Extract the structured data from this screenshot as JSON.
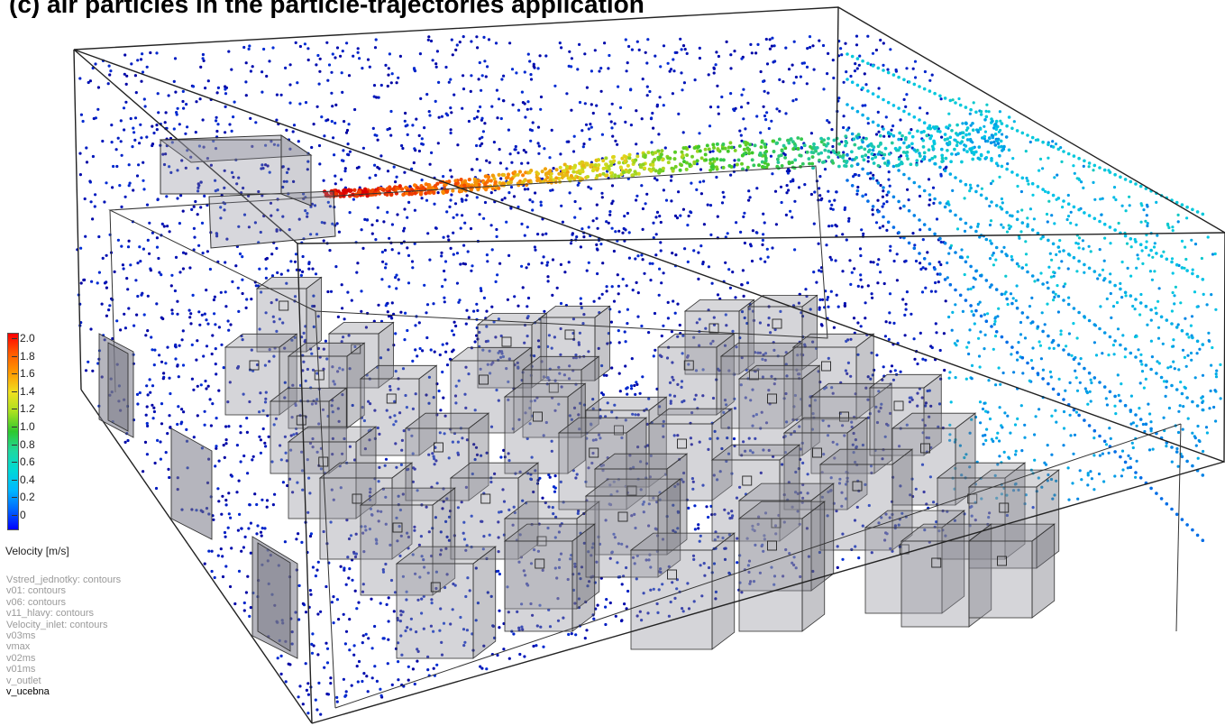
{
  "title": "(c) air particles in the particle-trajectories application",
  "legend": {
    "ticks": [
      "2.0",
      "1.8",
      "1.6",
      "1.4",
      "1.2",
      "1.0",
      "0.8",
      "0.6",
      "0.4",
      "0.2",
      "0"
    ],
    "title": "Velocity [m/s]",
    "colors": {
      "high": "#ff0000",
      "mid": "#2ec82e",
      "low": "#0000ff"
    }
  },
  "layers": [
    {
      "label": "Vstred_jednotky: contours",
      "active": false
    },
    {
      "label": "v01: contours",
      "active": false
    },
    {
      "label": "v06: contours",
      "active": false
    },
    {
      "label": "v11_hlavy: contours",
      "active": false
    },
    {
      "label": "Velocity_inlet: contours",
      "active": false
    },
    {
      "label": "v03ms",
      "active": false
    },
    {
      "label": "vmax",
      "active": false
    },
    {
      "label": "v02ms",
      "active": false
    },
    {
      "label": "v01ms",
      "active": false
    },
    {
      "label": "v_outlet",
      "active": false
    },
    {
      "label": "v_ucebna",
      "active": true
    }
  ]
}
